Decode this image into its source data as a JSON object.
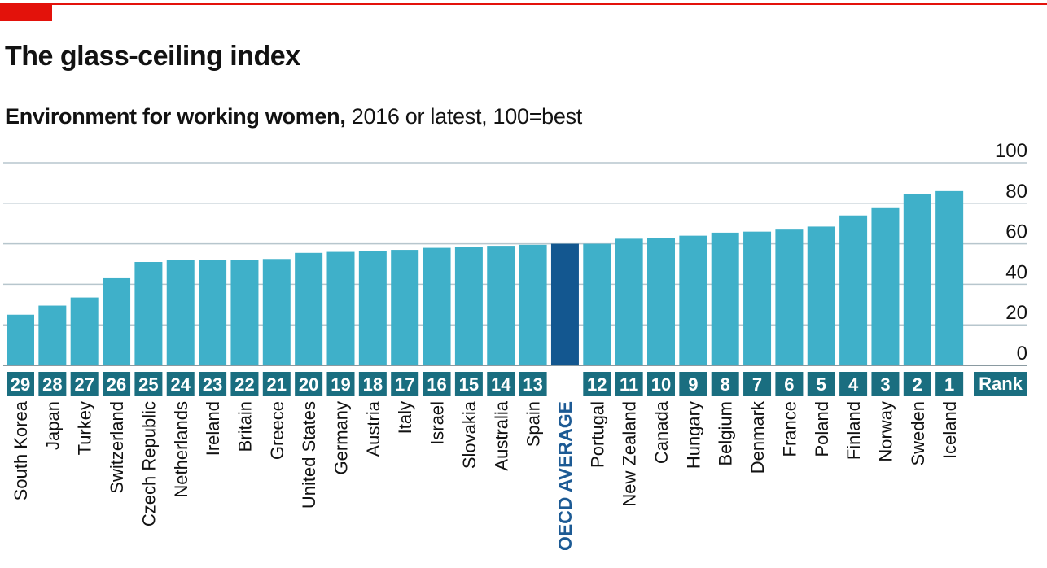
{
  "header": {
    "title": "The glass-ceiling index",
    "subtitle_bold": "Environment for working women,",
    "subtitle_rest": " 2016 or latest, 100=best"
  },
  "colors": {
    "bar": "#3fb0c9",
    "highlight": "#135790",
    "rank_box": "#1a6e80",
    "accent": "#e3120b",
    "grid": "#b7c6cd"
  },
  "chart_data": {
    "type": "bar",
    "title": "The glass-ceiling index",
    "subtitle": "Environment for working women, 2016 or latest, 100=best",
    "categories": [
      "South Korea",
      "Japan",
      "Turkey",
      "Switzerland",
      "Czech Republic",
      "Netherlands",
      "Ireland",
      "Britain",
      "Greece",
      "United States",
      "Germany",
      "Austria",
      "Italy",
      "Israel",
      "Slovakia",
      "Australia",
      "Spain",
      "OECD AVERAGE",
      "Portugal",
      "New Zealand",
      "Canada",
      "Hungary",
      "Belgium",
      "Denmark",
      "France",
      "Poland",
      "Finland",
      "Norway",
      "Sweden",
      "Iceland"
    ],
    "ranks": [
      "29",
      "28",
      "27",
      "26",
      "25",
      "24",
      "23",
      "22",
      "21",
      "20",
      "19",
      "18",
      "17",
      "16",
      "15",
      "14",
      "13",
      "",
      "12",
      "11",
      "10",
      "9",
      "8",
      "7",
      "6",
      "5",
      "4",
      "3",
      "2",
      "1"
    ],
    "values": [
      25,
      29.5,
      33.5,
      43,
      51,
      52,
      52,
      52,
      52.5,
      55.5,
      56,
      56.5,
      57,
      58,
      58.5,
      59,
      59.5,
      60,
      60,
      62.5,
      63,
      64,
      65.5,
      66,
      67,
      68.5,
      74,
      78,
      84.5,
      86
    ],
    "highlight_index": 17,
    "rank_header": "Rank",
    "yticks": [
      0,
      20,
      40,
      60,
      80,
      100
    ],
    "ylim": [
      0,
      100
    ],
    "grid": true
  }
}
